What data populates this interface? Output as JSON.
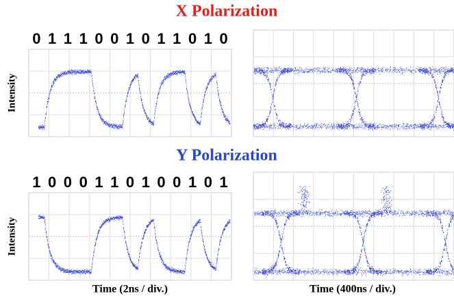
{
  "panels": [
    {
      "title": "X Polarization",
      "y_label": "Intensity",
      "bits": [
        "0",
        "1",
        "1",
        "1",
        "0",
        "0",
        "1",
        "0",
        "1",
        "1",
        "0",
        "1",
        "0"
      ]
    },
    {
      "title": "Y Polarization",
      "y_label": "Intensity",
      "bits": [
        "1",
        "0",
        "0",
        "0",
        "1",
        "1",
        "0",
        "1",
        "0",
        "0",
        "1",
        "0",
        "1"
      ],
      "x_labels": [
        "Time (2ns / div.)",
        "Time (400ns / div.)"
      ]
    }
  ]
}
